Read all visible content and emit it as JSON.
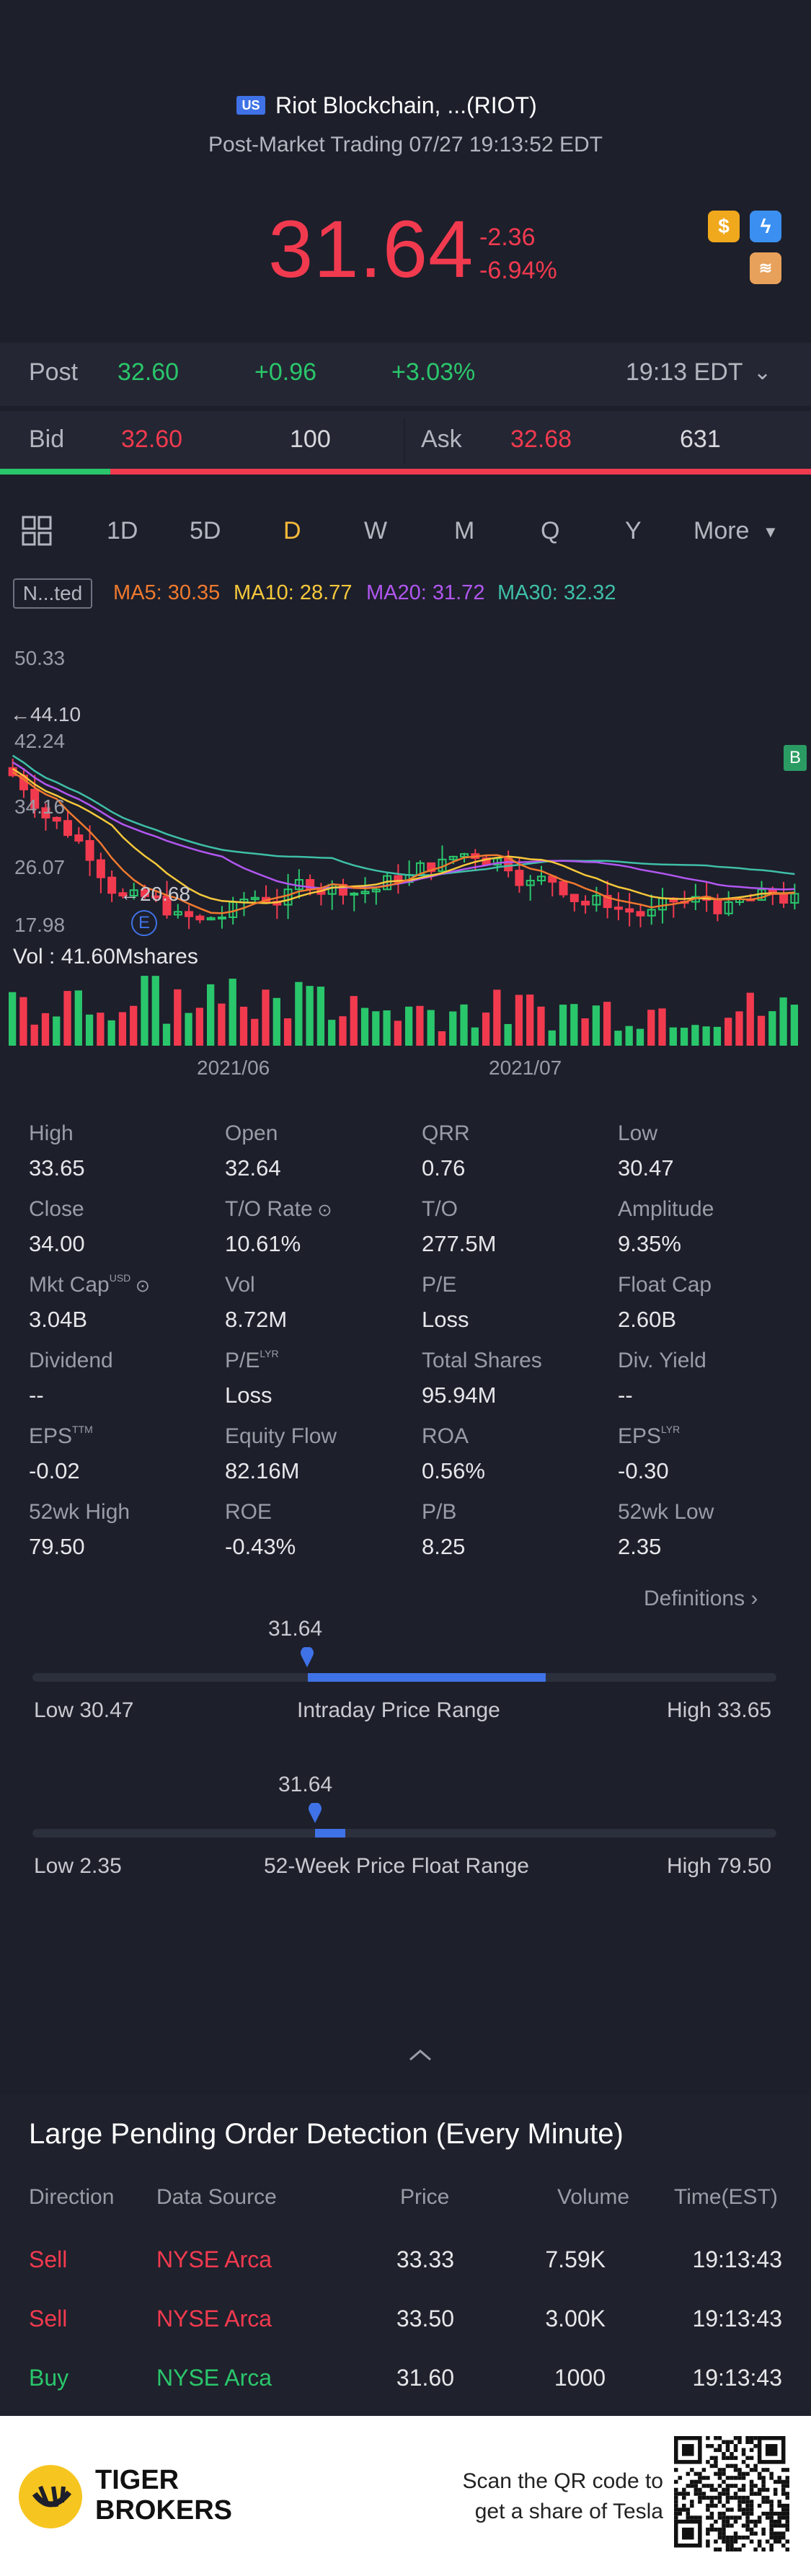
{
  "header": {
    "market_badge": "US",
    "title": "Riot Blockchain, ...(RIOT)",
    "subtitle": "Post-Market Trading 07/27 19:13:52 EDT",
    "price": "31.64",
    "change": "-2.36",
    "change_pct": "-6.94%",
    "icons": [
      "dollar-icon",
      "flash-icon",
      "stack-icon"
    ]
  },
  "post": {
    "label": "Post",
    "price": "32.60",
    "change": "+0.96",
    "change_pct": "+3.03%",
    "time": "19:13 EDT"
  },
  "bid_ask": {
    "bid_label": "Bid",
    "bid_price": "32.60",
    "bid_size": "100",
    "ask_label": "Ask",
    "ask_price": "32.68",
    "ask_size": "631",
    "bid_fraction": 0.136
  },
  "tabs": {
    "items": [
      "1D",
      "5D",
      "D",
      "W",
      "M",
      "Q",
      "Y"
    ],
    "active": "D",
    "more": "More"
  },
  "chart": {
    "legend_btn": "N...ted",
    "ma5": "MA5: 30.35",
    "ma10": "MA10: 28.77",
    "ma20": "MA20: 31.72",
    "ma30": "MA30: 32.32",
    "y_ticks": [
      "50.33",
      "42.24",
      "34.16",
      "26.07",
      "17.98"
    ],
    "high_marker": "44.10",
    "low_marker": "20.68",
    "event_e": "E",
    "event_b": "B",
    "volume_label": "Vol  : 41.60Mshares",
    "x_ticks": [
      "2021/06",
      "2021/07"
    ]
  },
  "stats": [
    {
      "label": "High",
      "value": "33.65"
    },
    {
      "label": "Open",
      "value": "32.64"
    },
    {
      "label": "QRR",
      "value": "0.76"
    },
    {
      "label": "Low",
      "value": "30.47"
    },
    {
      "label": "Close",
      "value": "34.00"
    },
    {
      "label": "T/O Rate",
      "value": "10.61%"
    },
    {
      "label": "T/O",
      "value": "277.5M"
    },
    {
      "label": "Amplitude",
      "value": "9.35%"
    },
    {
      "label": "Mkt Cap",
      "value": "3.04B",
      "sup": "USD"
    },
    {
      "label": "Vol",
      "value": "8.72M"
    },
    {
      "label": "P/E",
      "value": "Loss"
    },
    {
      "label": "Float Cap",
      "value": "2.60B"
    },
    {
      "label": "Dividend",
      "value": "--"
    },
    {
      "label": "P/E",
      "value": "Loss",
      "sup": "LYR"
    },
    {
      "label": "Total Shares",
      "value": "95.94M"
    },
    {
      "label": "Div. Yield",
      "value": "--"
    },
    {
      "label": "EPS",
      "value": "-0.02",
      "sup": "TTM"
    },
    {
      "label": "Equity Flow",
      "value": "82.16M"
    },
    {
      "label": "ROA",
      "value": "0.56%"
    },
    {
      "label": "EPS",
      "value": "-0.30",
      "sup": "LYR"
    },
    {
      "label": "52wk High",
      "value": "79.50"
    },
    {
      "label": "ROE",
      "value": "-0.43%"
    },
    {
      "label": "P/B",
      "value": "8.25"
    },
    {
      "label": "52wk Low",
      "value": "2.35"
    }
  ],
  "definitions": "Definitions",
  "intraday_range": {
    "current": "31.64",
    "low_label": "Low 30.47",
    "title": "Intraday Price Range",
    "high_label": "High 33.65",
    "position": 0.37
  },
  "week52_range": {
    "current": "31.64",
    "low_label": "Low 2.35",
    "title": "52-Week Price Float Range",
    "high_label": "High 79.50",
    "position": 0.38
  },
  "pending": {
    "title": "Large Pending Order Detection (Every Minute)",
    "headers": [
      "Direction",
      "Data Source",
      "Price",
      "Volume",
      "Time(EST)"
    ],
    "rows": [
      {
        "direction": "Sell",
        "source": "NYSE Arca",
        "price": "33.33",
        "volume": "7.59K",
        "time": "19:13:43"
      },
      {
        "direction": "Sell",
        "source": "NYSE Arca",
        "price": "33.50",
        "volume": "3.00K",
        "time": "19:13:43"
      },
      {
        "direction": "Buy",
        "source": "NYSE Arca",
        "price": "31.60",
        "volume": "1000",
        "time": "19:13:43"
      }
    ]
  },
  "footer": {
    "brand_line1": "TIGER",
    "brand_line2": "BROKERS",
    "cta_line1": "Scan the QR code to",
    "cta_line2": "get a share of Tesla"
  },
  "colors": {
    "up": "#2ac66b",
    "down": "#f23a4f",
    "accent": "#f6b93b",
    "blue": "#3f72e6"
  }
}
